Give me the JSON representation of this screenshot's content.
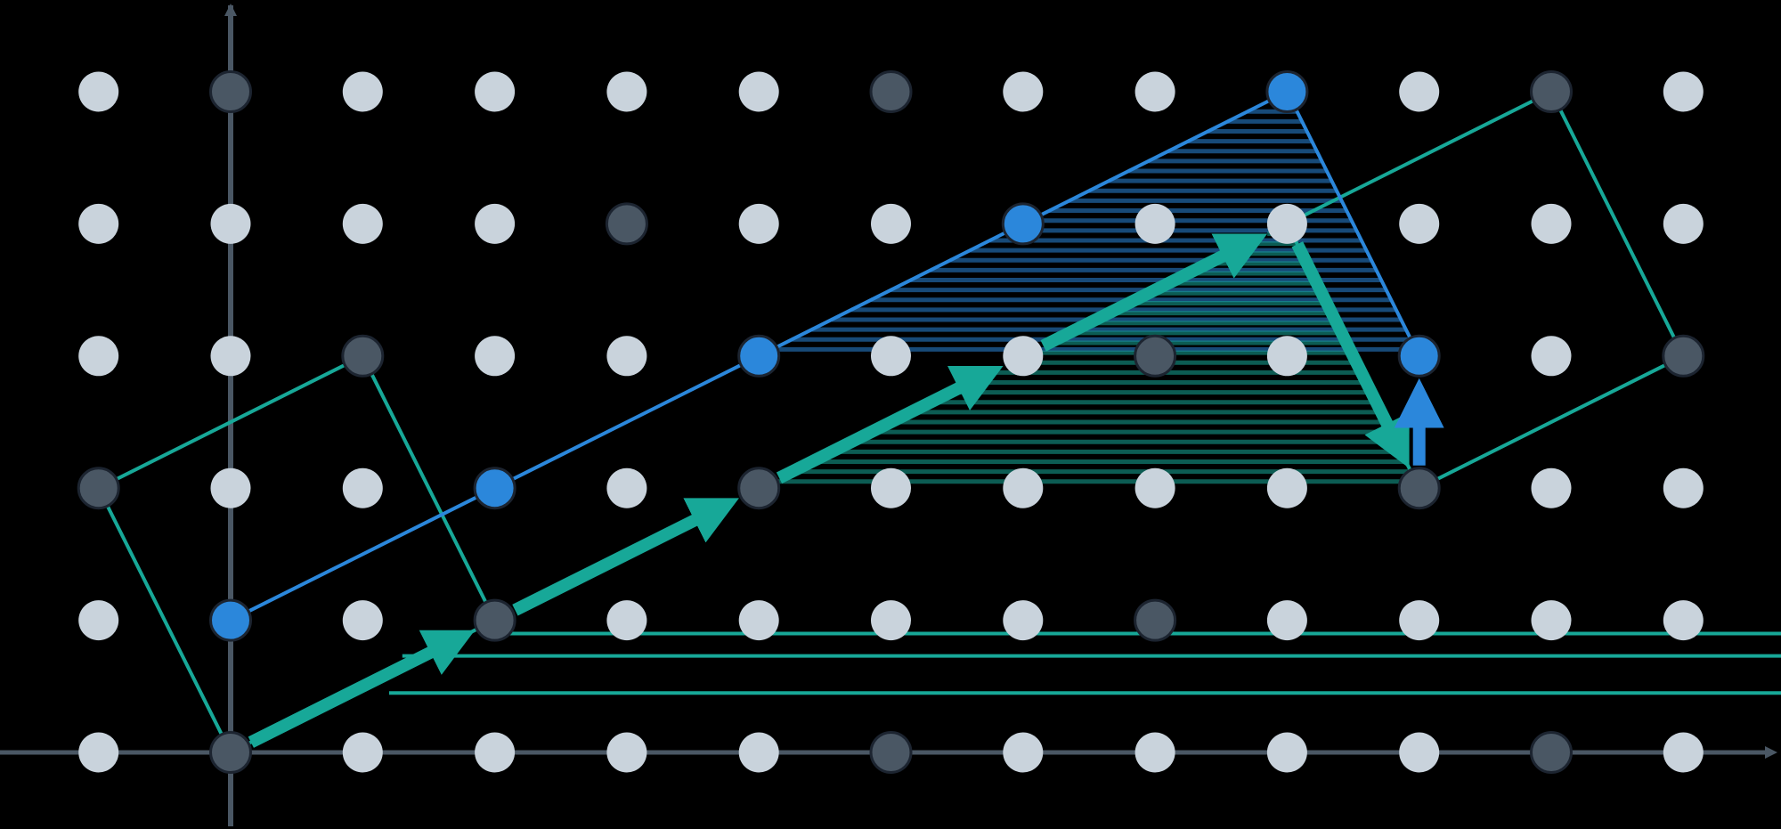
{
  "colors": {
    "background": "#000000",
    "axis": "#4a5764",
    "lattice_point": "#c9d3dc",
    "lattice_point_dark": "#4a5764",
    "blue": "#2b87db",
    "teal": "#17a898",
    "outline": "#1c2430"
  },
  "lattice": {
    "x_range": [
      -1,
      11
    ],
    "y_range": [
      0,
      5
    ]
  },
  "dark_points": [
    [
      0,
      5
    ],
    [
      5,
      5
    ],
    [
      10,
      5
    ],
    [
      3,
      4
    ],
    [
      1,
      3
    ],
    [
      7,
      3
    ],
    [
      11,
      3
    ],
    [
      -1,
      2
    ],
    [
      4,
      2
    ],
    [
      9,
      2
    ],
    [
      2,
      1
    ],
    [
      7,
      1
    ],
    [
      0,
      0
    ],
    [
      5,
      0
    ],
    [
      10,
      0
    ]
  ],
  "blue_path": [
    [
      0,
      1
    ],
    [
      2,
      2
    ],
    [
      4,
      3
    ],
    [
      6,
      4
    ],
    [
      8,
      5
    ],
    [
      9,
      3
    ]
  ],
  "teal_path": [
    [
      0,
      0
    ],
    [
      2,
      1
    ],
    [
      4,
      2
    ],
    [
      6,
      3
    ],
    [
      8,
      4
    ],
    [
      9,
      2
    ]
  ],
  "blue_short_arrow": {
    "from": [
      9,
      2
    ],
    "to": [
      9,
      3
    ]
  },
  "left_parallelogram": [
    [
      0,
      0
    ],
    [
      -1,
      2
    ],
    [
      1,
      3
    ],
    [
      2,
      1
    ]
  ],
  "right_parallelogram": [
    [
      9,
      2
    ],
    [
      11,
      3
    ],
    [
      10,
      5
    ],
    [
      8,
      4
    ]
  ],
  "background_lines": [
    {
      "y": 0.9,
      "x_from": 2,
      "x_to": 12.3,
      "color": "teal"
    },
    {
      "y": 0.73,
      "x_from": 1.3,
      "x_to": 12.3,
      "color": "teal"
    },
    {
      "y": 0.45,
      "x_from": 1.2,
      "x_to": 12.3,
      "color": "teal"
    }
  ]
}
